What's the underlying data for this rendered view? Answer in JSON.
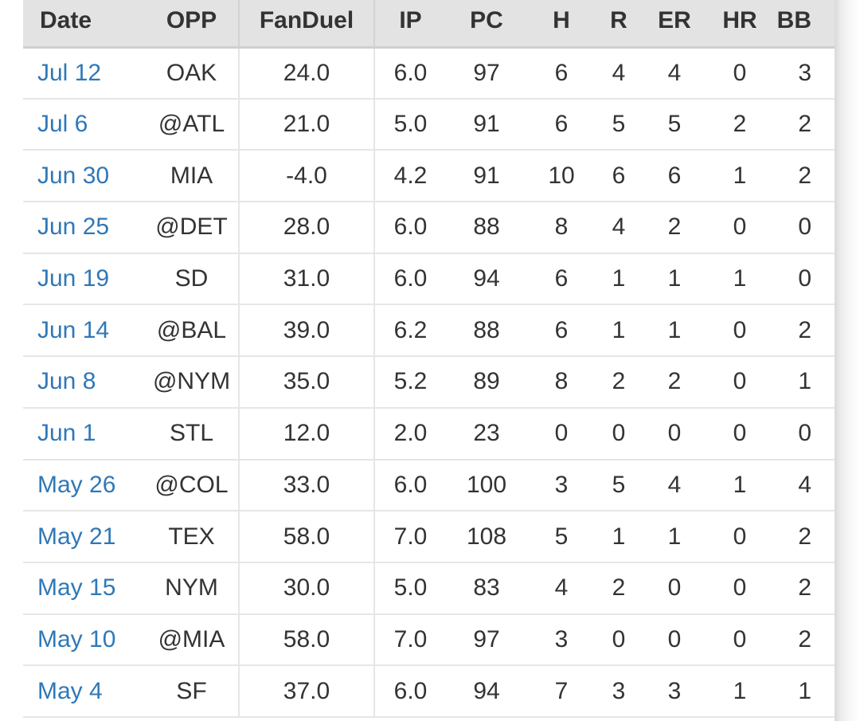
{
  "table": {
    "headers": {
      "date": "Date",
      "opp": "OPP",
      "fanduel": "FanDuel",
      "ip": "IP",
      "pc": "PC",
      "h": "H",
      "r": "R",
      "er": "ER",
      "hr": "HR",
      "bb": "BB"
    },
    "rows": [
      {
        "date": "Jul 12",
        "opp": "OAK",
        "fanduel": "24.0",
        "ip": "6.0",
        "pc": "97",
        "h": "6",
        "r": "4",
        "er": "4",
        "hr": "0",
        "bb": "3"
      },
      {
        "date": "Jul 6",
        "opp": "@ATL",
        "fanduel": "21.0",
        "ip": "5.0",
        "pc": "91",
        "h": "6",
        "r": "5",
        "er": "5",
        "hr": "2",
        "bb": "2"
      },
      {
        "date": "Jun 30",
        "opp": "MIA",
        "fanduel": "-4.0",
        "ip": "4.2",
        "pc": "91",
        "h": "10",
        "r": "6",
        "er": "6",
        "hr": "1",
        "bb": "2"
      },
      {
        "date": "Jun 25",
        "opp": "@DET",
        "fanduel": "28.0",
        "ip": "6.0",
        "pc": "88",
        "h": "8",
        "r": "4",
        "er": "2",
        "hr": "0",
        "bb": "0"
      },
      {
        "date": "Jun 19",
        "opp": "SD",
        "fanduel": "31.0",
        "ip": "6.0",
        "pc": "94",
        "h": "6",
        "r": "1",
        "er": "1",
        "hr": "1",
        "bb": "0"
      },
      {
        "date": "Jun 14",
        "opp": "@BAL",
        "fanduel": "39.0",
        "ip": "6.2",
        "pc": "88",
        "h": "6",
        "r": "1",
        "er": "1",
        "hr": "0",
        "bb": "2"
      },
      {
        "date": "Jun 8",
        "opp": "@NYM",
        "fanduel": "35.0",
        "ip": "5.2",
        "pc": "89",
        "h": "8",
        "r": "2",
        "er": "2",
        "hr": "0",
        "bb": "1"
      },
      {
        "date": "Jun 1",
        "opp": "STL",
        "fanduel": "12.0",
        "ip": "2.0",
        "pc": "23",
        "h": "0",
        "r": "0",
        "er": "0",
        "hr": "0",
        "bb": "0"
      },
      {
        "date": "May 26",
        "opp": "@COL",
        "fanduel": "33.0",
        "ip": "6.0",
        "pc": "100",
        "h": "3",
        "r": "5",
        "er": "4",
        "hr": "1",
        "bb": "4"
      },
      {
        "date": "May 21",
        "opp": "TEX",
        "fanduel": "58.0",
        "ip": "7.0",
        "pc": "108",
        "h": "5",
        "r": "1",
        "er": "1",
        "hr": "0",
        "bb": "2"
      },
      {
        "date": "May 15",
        "opp": "NYM",
        "fanduel": "30.0",
        "ip": "5.0",
        "pc": "83",
        "h": "4",
        "r": "2",
        "er": "0",
        "hr": "0",
        "bb": "2"
      },
      {
        "date": "May 10",
        "opp": "@MIA",
        "fanduel": "58.0",
        "ip": "7.0",
        "pc": "97",
        "h": "3",
        "r": "0",
        "er": "0",
        "hr": "0",
        "bb": "2"
      },
      {
        "date": "May 4",
        "opp": "SF",
        "fanduel": "37.0",
        "ip": "6.0",
        "pc": "94",
        "h": "7",
        "r": "3",
        "er": "3",
        "hr": "1",
        "bb": "1"
      }
    ]
  },
  "colors": {
    "date_link": "#2f78b7",
    "text": "#333333",
    "header_bg": "#e3e3e3",
    "grid": "#e6e6e6"
  }
}
